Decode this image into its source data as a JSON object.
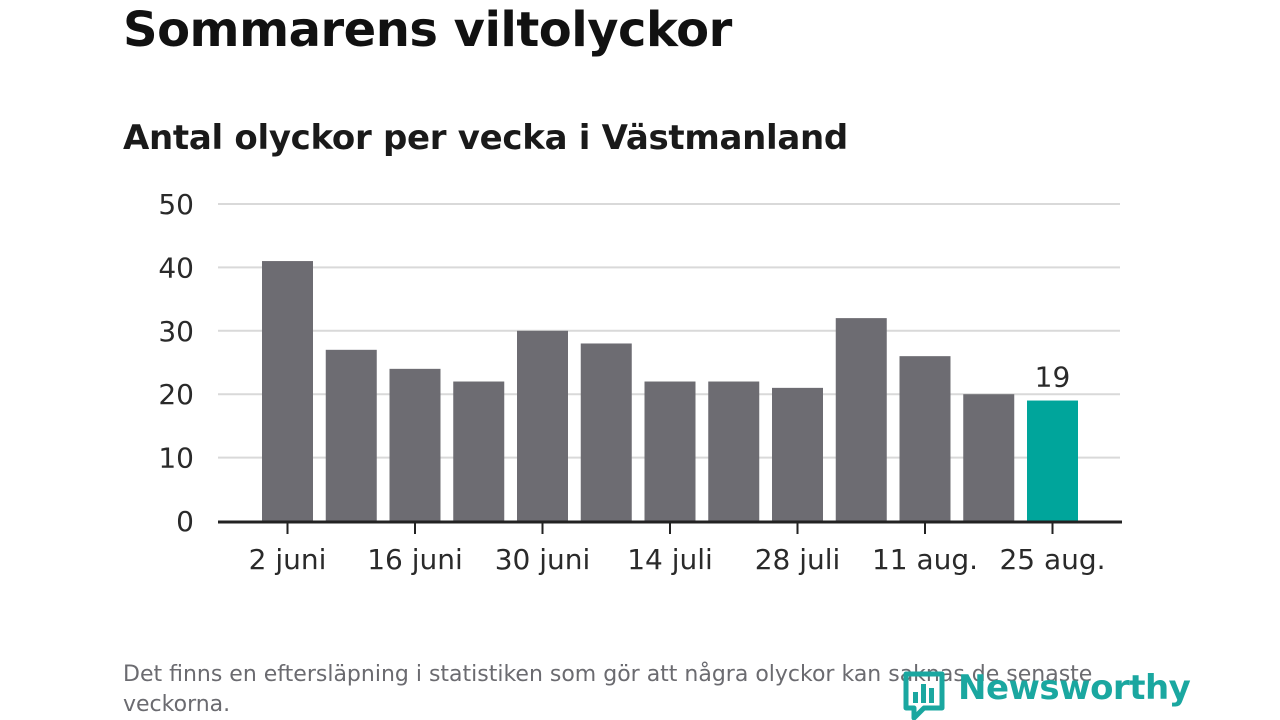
{
  "header": {
    "title": "Sommarens viltolyckor",
    "subtitle": "Antal olyckor per vecka i Västmanland"
  },
  "footer": {
    "note": "Det finns en eftersläpning i statistiken som gör att några olyckor kan saknas de senaste veckorna.",
    "brand": "Newsworthy"
  },
  "colors": {
    "bar": "#6d6c72",
    "highlight": "#00a59b",
    "grid": "#d9d9d9",
    "axis": "#222222",
    "brand": "#1aa7a0"
  },
  "chart_data": {
    "type": "bar",
    "title": "Sommarens viltolyckor",
    "subtitle": "Antal olyckor per vecka i Västmanland",
    "tick_labels": [
      "2 juni",
      "16 juni",
      "30 juni",
      "14 juli",
      "28 juli",
      "11 aug.",
      "25 aug."
    ],
    "values": [
      41,
      27,
      24,
      22,
      30,
      28,
      22,
      22,
      21,
      32,
      26,
      20,
      19
    ],
    "highlight_index": 12,
    "highlight_label": "19",
    "yticks": [
      0,
      10,
      20,
      30,
      40,
      50
    ],
    "ylim": [
      0,
      50
    ],
    "grid": true
  }
}
